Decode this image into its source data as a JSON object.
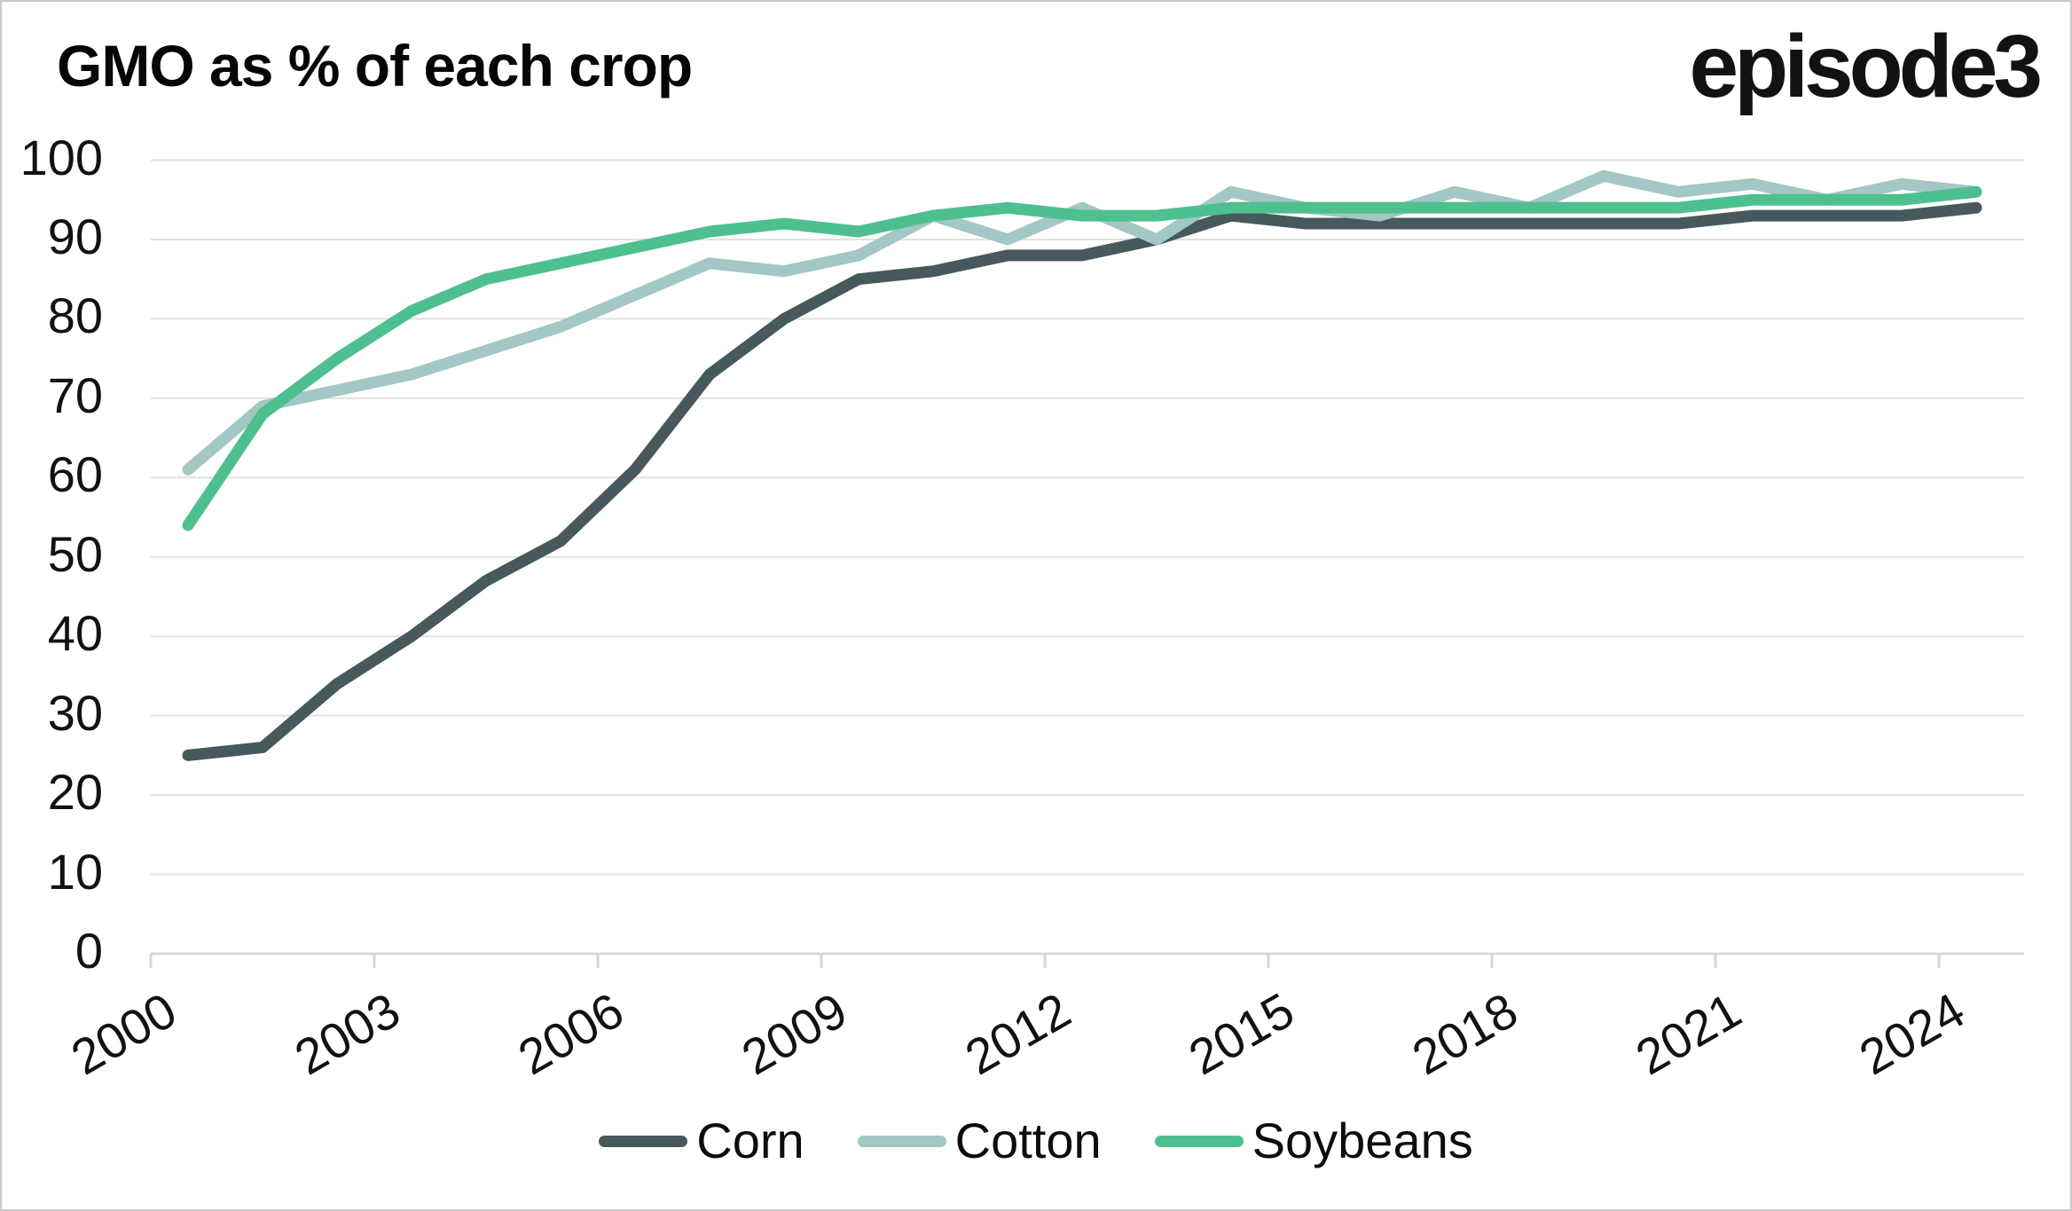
{
  "title": "GMO as % of each crop",
  "logo": "episode3",
  "colors": {
    "corn": "#47595c",
    "cotton": "#a2c7c4",
    "soybeans": "#4ec08f",
    "grid": "#e1e1e1",
    "baseline": "#dadada",
    "tick": "#d6d6d6",
    "text": "#121212",
    "background": "#ffffff",
    "border": "#c9c9c9"
  },
  "chart_data": {
    "type": "line",
    "title": "GMO as % of each crop",
    "x": [
      2000,
      2001,
      2002,
      2003,
      2004,
      2005,
      2006,
      2007,
      2008,
      2009,
      2010,
      2011,
      2012,
      2013,
      2014,
      2015,
      2016,
      2017,
      2018,
      2019,
      2020,
      2021,
      2022,
      2023,
      2024
    ],
    "series": [
      {
        "name": "Corn",
        "color_key": "corn",
        "values": [
          25,
          26,
          34,
          40,
          47,
          52,
          61,
          73,
          80,
          85,
          86,
          88,
          88,
          90,
          93,
          92,
          92,
          92,
          92,
          92,
          92,
          93,
          93,
          93,
          94
        ]
      },
      {
        "name": "Cotton",
        "color_key": "cotton",
        "values": [
          61,
          69,
          71,
          73,
          76,
          79,
          83,
          87,
          86,
          88,
          93,
          90,
          94,
          90,
          96,
          94,
          93,
          96,
          94,
          98,
          96,
          97,
          95,
          97,
          96
        ]
      },
      {
        "name": "Soybeans",
        "color_key": "soybeans",
        "values": [
          54,
          68,
          75,
          81,
          85,
          87,
          89,
          91,
          92,
          91,
          93,
          94,
          93,
          93,
          94,
          94,
          94,
          94,
          94,
          94,
          94,
          95,
          95,
          95,
          96
        ]
      }
    ],
    "xticks": [
      2000,
      2003,
      2006,
      2009,
      2012,
      2015,
      2018,
      2021,
      2024
    ],
    "yticks": [
      0,
      10,
      20,
      30,
      40,
      50,
      60,
      70,
      80,
      90,
      100
    ],
    "ylim": [
      0,
      100
    ],
    "xlabel": "",
    "ylabel": "",
    "grid": "horizontal",
    "legend_position": "bottom"
  }
}
